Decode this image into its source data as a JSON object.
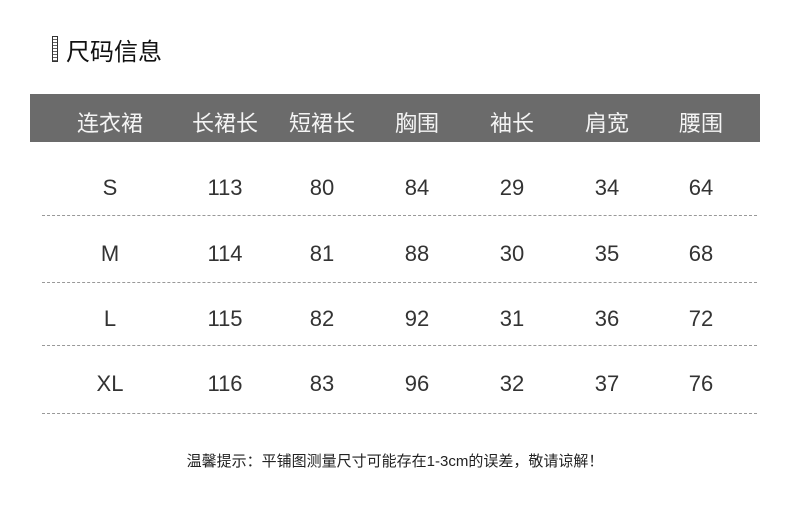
{
  "title": "尺码信息",
  "icon": "ruler-icon",
  "header_color": "#6b6b6b",
  "columns": [
    "连衣裙",
    "长裙长",
    "短裙长",
    "胸围",
    "袖长",
    "肩宽",
    "腰围"
  ],
  "rows": [
    [
      "S",
      "113",
      "80",
      "84",
      "29",
      "34",
      "64"
    ],
    [
      "M",
      "114",
      "81",
      "88",
      "30",
      "35",
      "68"
    ],
    [
      "L",
      "115",
      "82",
      "92",
      "31",
      "36",
      "72"
    ],
    [
      "XL",
      "116",
      "83",
      "96",
      "32",
      "37",
      "76"
    ]
  ],
  "note": "温馨提示：平铺图测量尺寸可能存在1-3cm的误差，敬请谅解！"
}
